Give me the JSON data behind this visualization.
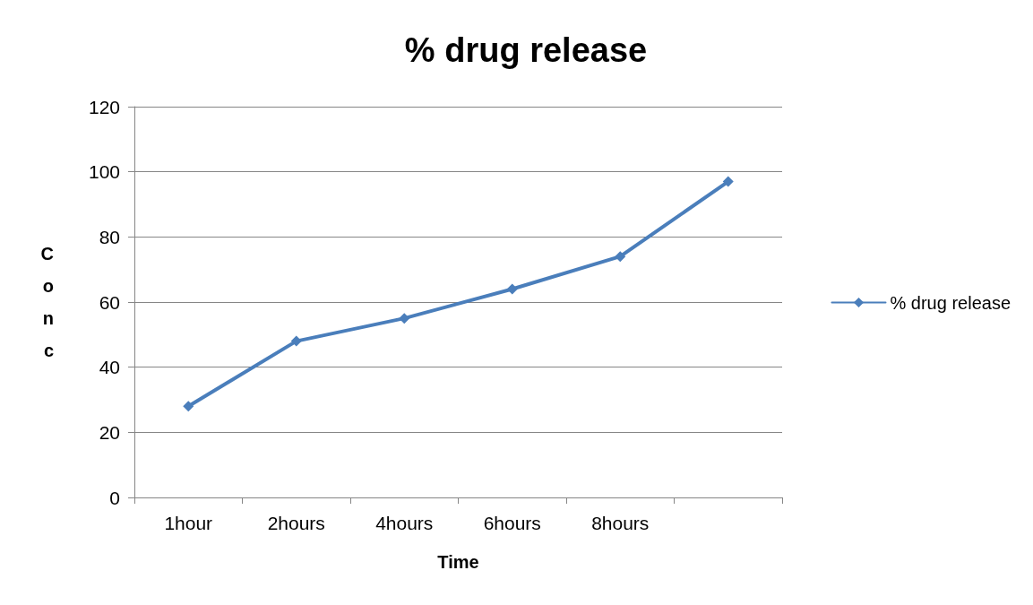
{
  "chart_data": {
    "type": "line",
    "title": "% drug release",
    "xlabel": "Time",
    "ylabel": "Conc",
    "categories": [
      "1hour",
      "2hours",
      "4hours",
      "6hours",
      "8hours",
      null
    ],
    "series": [
      {
        "name": "% drug release",
        "color": "#4a7ebb",
        "values": [
          28,
          48,
          55,
          64,
          74,
          97
        ]
      }
    ],
    "ylim": [
      0,
      120
    ],
    "yticks": [
      0,
      20,
      40,
      60,
      80,
      100,
      120
    ],
    "grid": "y",
    "legend": "right",
    "marker": "diamond",
    "line_style": "solid"
  }
}
